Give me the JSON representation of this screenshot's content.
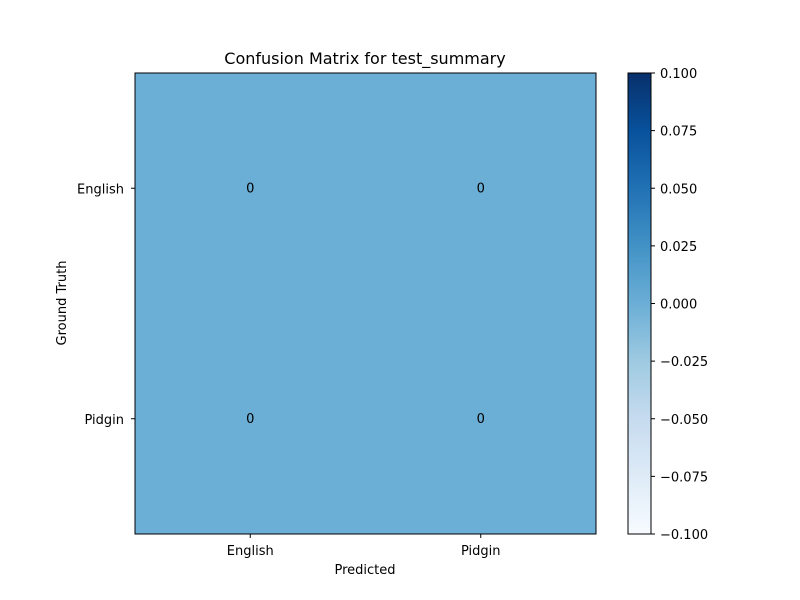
{
  "chart_data": {
    "type": "heatmap",
    "title": "Confusion Matrix for test_summary",
    "xlabel": "Predicted",
    "ylabel": "Ground Truth",
    "x_categories": [
      "English",
      "Pidgin"
    ],
    "y_categories": [
      "English",
      "Pidgin"
    ],
    "values": [
      [
        0,
        0
      ],
      [
        0,
        0
      ]
    ],
    "cell_labels": [
      [
        "0",
        "0"
      ],
      [
        "0",
        "0"
      ]
    ],
    "colormap": "Blues",
    "colorbar": {
      "range": [
        -0.1,
        0.1
      ],
      "ticks": [
        0.1,
        0.075,
        0.05,
        0.025,
        0.0,
        -0.025,
        -0.05,
        -0.075,
        -0.1
      ],
      "tick_labels": [
        "0.100",
        "0.075",
        "0.050",
        "0.025",
        "0.000",
        "−0.025",
        "−0.050",
        "−0.075",
        "−0.100"
      ]
    },
    "grid": false
  }
}
